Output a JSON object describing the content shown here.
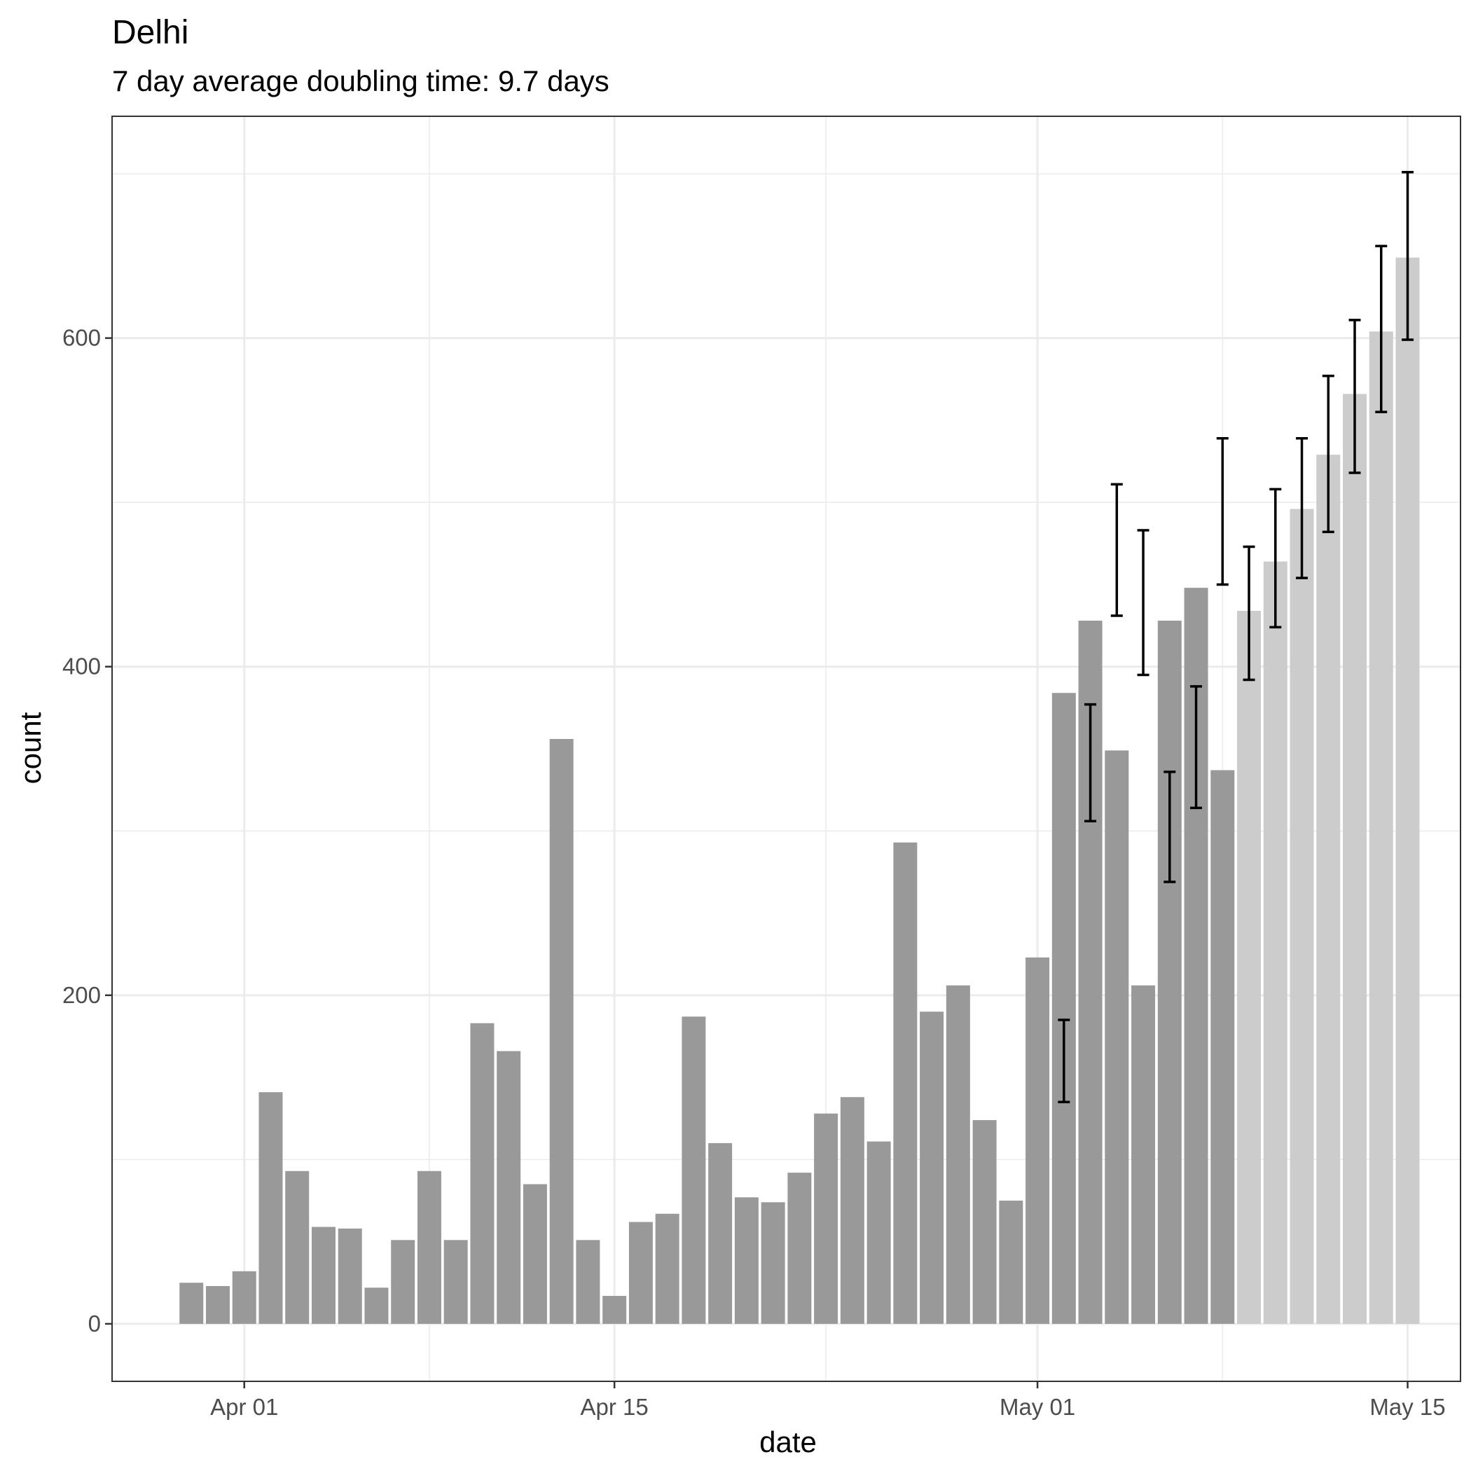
{
  "chart_data": {
    "type": "bar",
    "title": "Delhi",
    "subtitle": "7 day average doubling time: 9.7 days",
    "xlabel": "date",
    "ylabel": "count",
    "x_ticks": [
      {
        "date": "2020-04-01",
        "label": "Apr 01"
      },
      {
        "date": "2020-04-15",
        "label": "Apr 15"
      },
      {
        "date": "2020-05-01",
        "label": "May 01"
      },
      {
        "date": "2020-05-15",
        "label": "May 15"
      }
    ],
    "y_ticks": [
      0,
      200,
      400,
      600
    ],
    "xlim": [
      "2020-03-27",
      "2020-05-17"
    ],
    "ylim": [
      -35,
      735
    ],
    "grid": true,
    "colors": {
      "observed": "#999999",
      "projected": "#cccccc",
      "errorbar": "#000000",
      "panel_border": "#333333",
      "grid": "#ebebeb"
    },
    "series": [
      {
        "name": "observed",
        "x": [
          "2020-03-30",
          "2020-03-31",
          "2020-04-01",
          "2020-04-02",
          "2020-04-03",
          "2020-04-04",
          "2020-04-05",
          "2020-04-06",
          "2020-04-07",
          "2020-04-08",
          "2020-04-09",
          "2020-04-10",
          "2020-04-11",
          "2020-04-12",
          "2020-04-13",
          "2020-04-14",
          "2020-04-15",
          "2020-04-16",
          "2020-04-17",
          "2020-04-18",
          "2020-04-19",
          "2020-04-20",
          "2020-04-21",
          "2020-04-22",
          "2020-04-23",
          "2020-04-24",
          "2020-04-25",
          "2020-04-26",
          "2020-04-27",
          "2020-04-28",
          "2020-04-29",
          "2020-04-30",
          "2020-05-01",
          "2020-05-02",
          "2020-05-03",
          "2020-05-04",
          "2020-05-05",
          "2020-05-06",
          "2020-05-07",
          "2020-05-08",
          "2020-05-09"
        ],
        "values": [
          25,
          23,
          32,
          141,
          93,
          59,
          58,
          22,
          51,
          93,
          51,
          183,
          166,
          85,
          356,
          51,
          17,
          62,
          67,
          187,
          110,
          77,
          74,
          92,
          128,
          138,
          111,
          293,
          190,
          206,
          124,
          75,
          223,
          384,
          428,
          349,
          206,
          428,
          448,
          337,
          0
        ]
      },
      {
        "name": "projected",
        "x": [
          "2020-05-09",
          "2020-05-10",
          "2020-05-11",
          "2020-05-12",
          "2020-05-13",
          "2020-05-14",
          "2020-05-15"
        ],
        "values": [
          434,
          464,
          496,
          529,
          566,
          604,
          649
        ]
      }
    ],
    "error_bars": [
      {
        "x": "2020-05-02",
        "low": 135,
        "high": 185
      },
      {
        "x": "2020-05-03",
        "low": 306,
        "high": 377
      },
      {
        "x": "2020-05-04",
        "low": 431,
        "high": 511
      },
      {
        "x": "2020-05-05",
        "low": 395,
        "high": 483
      },
      {
        "x": "2020-05-06",
        "low": 269,
        "high": 336
      },
      {
        "x": "2020-05-07",
        "low": 314,
        "high": 388
      },
      {
        "x": "2020-05-08",
        "low": 450,
        "high": 539
      },
      {
        "x": "2020-05-09",
        "low": 392,
        "high": 473
      },
      {
        "x": "2020-05-10",
        "low": 424,
        "high": 508
      },
      {
        "x": "2020-05-11",
        "low": 454,
        "high": 539
      },
      {
        "x": "2020-05-12",
        "low": 482,
        "high": 577
      },
      {
        "x": "2020-05-13",
        "low": 518,
        "high": 611
      },
      {
        "x": "2020-05-14",
        "low": 555,
        "high": 656
      },
      {
        "x": "2020-05-15",
        "low": 599,
        "high": 701
      }
    ]
  }
}
